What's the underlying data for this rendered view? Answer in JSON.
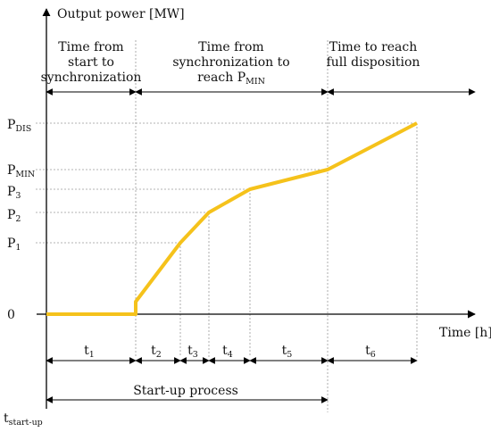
{
  "chart_data": {
    "type": "line",
    "ylabel": "Output power [MW]",
    "xlabel": "Time [h]",
    "y_ticks": [
      {
        "key": "zero",
        "main": "0",
        "sub": ""
      },
      {
        "key": "P1",
        "main": "P",
        "sub": "1"
      },
      {
        "key": "P2",
        "main": "P",
        "sub": "2"
      },
      {
        "key": "P3",
        "main": "P",
        "sub": "3"
      },
      {
        "key": "PMIN",
        "main": "P",
        "sub": "MIN"
      },
      {
        "key": "PDIS",
        "main": "P",
        "sub": "DIS"
      }
    ],
    "x_origin_label": {
      "main": "t",
      "sub": "start-up"
    },
    "phases": [
      {
        "lines": [
          "Time from",
          "start to",
          "synchronization"
        ]
      },
      {
        "lines": [
          "Time from",
          "synchronization to"
        ],
        "last": {
          "main": "reach P",
          "sub": "MIN"
        }
      },
      {
        "lines": [
          "Time to reach",
          "full disposition"
        ]
      }
    ],
    "intervals": [
      {
        "main": "t",
        "sub": "1"
      },
      {
        "main": "t",
        "sub": "2"
      },
      {
        "main": "t",
        "sub": "3"
      },
      {
        "main": "t",
        "sub": "4"
      },
      {
        "main": "t",
        "sub": "5"
      },
      {
        "main": "t",
        "sub": "6"
      }
    ],
    "process_label": "Start-up process",
    "curve": [
      {
        "x": 0,
        "y": "zero"
      },
      {
        "x": 1,
        "y": "zero"
      },
      {
        "x": 1,
        "y": "step"
      },
      {
        "x": 2,
        "y": "P1"
      },
      {
        "x": 3,
        "y": "P2"
      },
      {
        "x": 4,
        "y": "P3"
      },
      {
        "x": 5,
        "y": "PMIN"
      },
      {
        "x": 6,
        "y": "PDIS"
      }
    ],
    "line_color": "#F5C21B",
    "grid": false
  }
}
